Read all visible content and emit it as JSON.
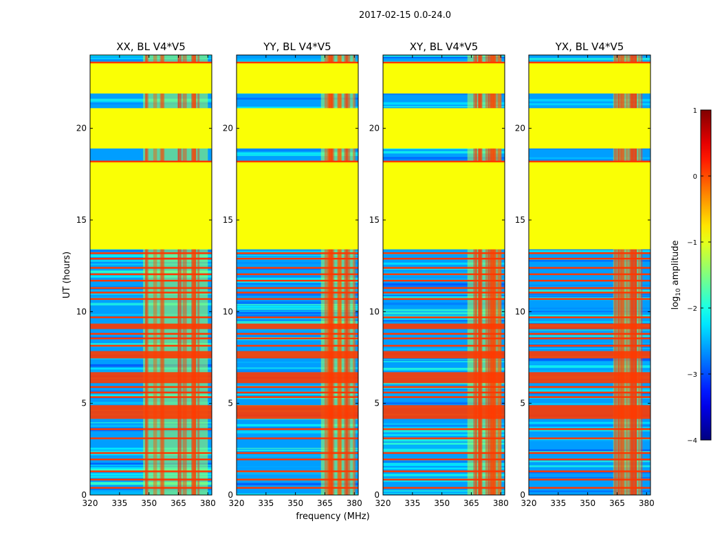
{
  "figure_title": "2017-02-15 0.0-24.0",
  "chart_data": {
    "type": "heatmap",
    "ylabel": "UT (hours)",
    "xlabel": "frequency (MHz)",
    "xlim": [
      320,
      382
    ],
    "ylim": [
      0,
      24
    ],
    "xticks": [
      320,
      335,
      350,
      365,
      380
    ],
    "yticks": [
      0,
      5,
      10,
      15,
      20
    ],
    "colorbar": {
      "label": "log",
      "label_sub": "10",
      "label_rest": " amplitude",
      "range": [
        -4,
        1
      ],
      "ticks": [
        1,
        0,
        -1,
        -2,
        -3,
        -4
      ],
      "tick_labels": [
        "1",
        "0",
        "−1",
        "−2",
        "−3",
        "−4"
      ]
    },
    "panels": [
      {
        "title": "XX, BL V4*V5"
      },
      {
        "title": "YY, BL V4*V5"
      },
      {
        "title": "XY, BL V4*V5"
      },
      {
        "title": "YX, BL V4*V5"
      }
    ],
    "levels": {
      "flagged_block": -0.9,
      "background_noise": -2.6,
      "high_band": -1.3,
      "rfi_line": 0.1
    },
    "blocks_hours": [
      [
        13.4,
        18.2
      ],
      [
        18.9,
        21.1
      ],
      [
        21.9,
        23.6
      ]
    ],
    "orange_bands_hours": [
      [
        4.15,
        4.9
      ],
      [
        6.1,
        6.7
      ],
      [
        7.45,
        7.85
      ],
      [
        9.05,
        9.35
      ]
    ],
    "orange_lines_hours": [
      0.4,
      0.85,
      1.3,
      1.95,
      2.3,
      3.1,
      3.6,
      5.35,
      5.6,
      5.9,
      8.15,
      8.55,
      8.8,
      9.7,
      10.7,
      11.05,
      11.3,
      11.7,
      12.05,
      12.4,
      12.9,
      13.2,
      18.2,
      23.6
    ],
    "high_band_mhz": [
      {
        "from": 347,
        "to": 380
      },
      {
        "from": 363,
        "to": 380
      },
      {
        "from": 363,
        "to": 380
      },
      {
        "from": 363,
        "to": 377
      }
    ]
  }
}
